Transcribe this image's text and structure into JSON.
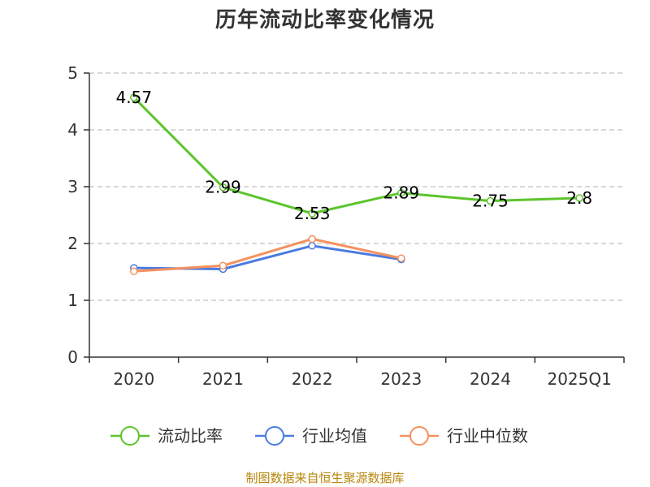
{
  "chart_data": {
    "type": "line",
    "title": "历年流动比率变化情况",
    "categories": [
      "2020",
      "2021",
      "2022",
      "2023",
      "2024",
      "2025Q1"
    ],
    "ylim": [
      0,
      5
    ],
    "yticks": [
      0,
      1,
      2,
      3,
      4,
      5
    ],
    "grid": true,
    "legend_position": "bottom",
    "series": [
      {
        "name": "流动比率",
        "color": "#5cc42b",
        "values": [
          4.57,
          2.99,
          2.53,
          2.89,
          2.75,
          2.8
        ],
        "labels": [
          "4.57",
          "2.99",
          "2.53",
          "2.89",
          "2.75",
          "2.8"
        ]
      },
      {
        "name": "行业均值",
        "color": "#4a7be0",
        "values": [
          1.57,
          1.55,
          1.96,
          1.72,
          null,
          null
        ]
      },
      {
        "name": "行业中位数",
        "color": "#f4915e",
        "values": [
          1.51,
          1.61,
          2.08,
          1.74,
          null,
          null
        ]
      }
    ]
  },
  "source": "制图数据来自恒生聚源数据库"
}
